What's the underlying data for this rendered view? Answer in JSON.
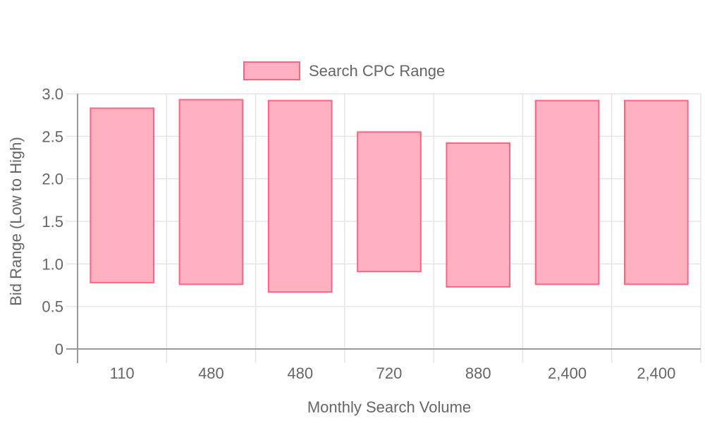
{
  "chart_data": {
    "type": "bar",
    "subtype": "floating-range",
    "categories": [
      "110",
      "480",
      "480",
      "720",
      "880",
      "2,400",
      "2,400"
    ],
    "series": [
      {
        "name": "Search CPC Range",
        "ranges": [
          [
            0.78,
            2.83
          ],
          [
            0.76,
            2.93
          ],
          [
            0.67,
            2.92
          ],
          [
            0.91,
            2.55
          ],
          [
            0.73,
            2.42
          ],
          [
            0.76,
            2.92
          ],
          [
            0.76,
            2.92
          ]
        ],
        "fill": "#ffb0c1",
        "stroke": "#ff6384"
      }
    ],
    "xlabel": "Monthly Search Volume",
    "ylabel": "Bid Range (Low to High)",
    "ylim": [
      0,
      3.0
    ],
    "yticks": [
      {
        "value": 0,
        "label": "0"
      },
      {
        "value": 0.5,
        "label": "0.5"
      },
      {
        "value": 1.0,
        "label": "1.0"
      },
      {
        "value": 1.5,
        "label": "1.5"
      },
      {
        "value": 2.0,
        "label": "2.0"
      },
      {
        "value": 2.5,
        "label": "2.5"
      },
      {
        "value": 3.0,
        "label": "3.0"
      }
    ],
    "grid": true,
    "legend_position": "top-center"
  }
}
